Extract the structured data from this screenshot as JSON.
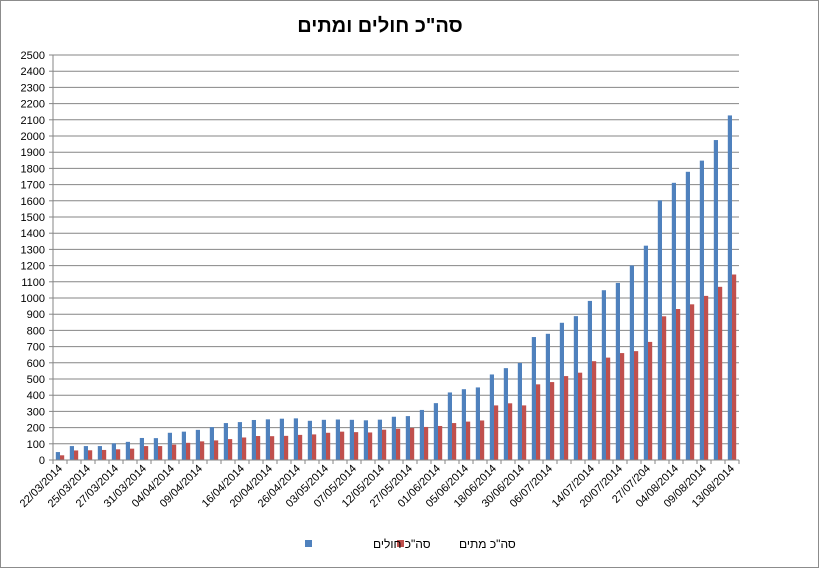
{
  "chart_data": {
    "type": "bar",
    "title": "סה\"כ חולים ומתים",
    "xlabel": "",
    "ylabel": "",
    "ylim": [
      0,
      2500
    ],
    "yticks": [
      0,
      100,
      200,
      300,
      400,
      500,
      600,
      700,
      800,
      900,
      1000,
      1100,
      1200,
      1300,
      1400,
      1500,
      1600,
      1700,
      1800,
      1900,
      2000,
      2100,
      2200,
      2300,
      2400,
      2500
    ],
    "grid": true,
    "legend": "bottom",
    "colors": {
      "cases": "#4f81bd",
      "deaths": "#c0504d"
    },
    "tick_labels": [
      "22/03/2014",
      "25/03/2014",
      "27/03/2014",
      "31/03/2014",
      "04/04/2014",
      "09/04/2014",
      "16/04/2014",
      "20/04/2014",
      "26/04/2014",
      "03/05/2014",
      "07/05/2014",
      "12/05/2014",
      "27/05/2014",
      "01/06/2014",
      "05/06/2014",
      "18/06/2014",
      "30/06/2014",
      "06/07/2014",
      "14/07/2014",
      "20/07/2014",
      "27/07/204",
      "04/08/2014",
      "09/08/2014",
      "13/08/2014"
    ],
    "series": [
      {
        "name": "סה\"כ חולים",
        "values": [
          49,
          86,
          86,
          86,
          103,
          112,
          136,
          135,
          168,
          175,
          186,
          203,
          228,
          234,
          247,
          251,
          255,
          257,
          242,
          248,
          250,
          248,
          245,
          249,
          267,
          271,
          309,
          351,
          417,
          437,
          448,
          528,
          567,
          599,
          759,
          779,
          847,
          888,
          982,
          1048,
          1093,
          1201,
          1323,
          1603,
          1711,
          1779,
          1848,
          1975,
          2127
        ]
      },
      {
        "name": "סה\"כ מתים",
        "values": [
          29,
          59,
          60,
          62,
          66,
          70,
          86,
          86,
          95,
          106,
          115,
          121,
          129,
          139,
          148,
          147,
          149,
          155,
          158,
          168,
          175,
          172,
          170,
          187,
          193,
          198,
          204,
          210,
          228,
          237,
          244,
          337,
          350,
          337,
          467,
          481,
          518,
          539,
          610,
          632,
          660,
          672,
          729,
          887,
          932,
          961,
          1013,
          1069,
          1145
        ]
      }
    ]
  }
}
